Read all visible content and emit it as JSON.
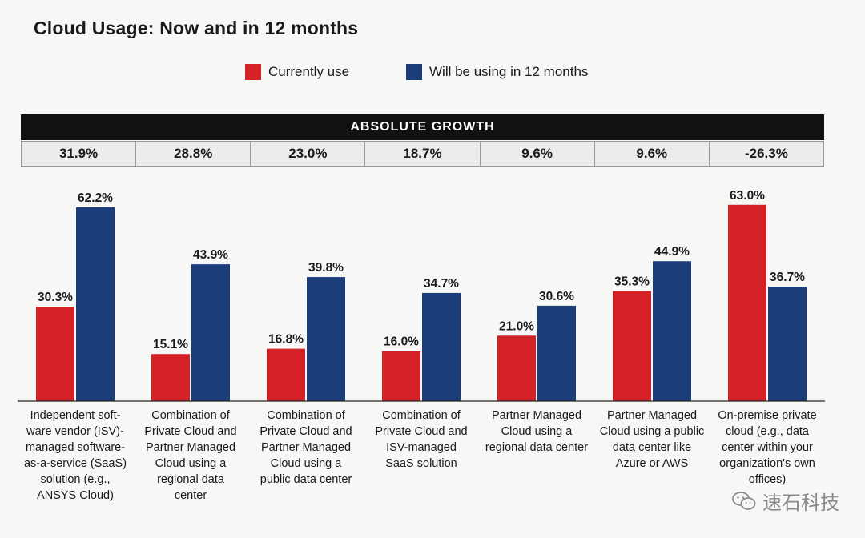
{
  "chart_data": {
    "type": "bar",
    "title": "Cloud Usage:  Now and in 12 months",
    "legend": [
      "Currently use",
      "Will be using in 12 months"
    ],
    "colors": {
      "current": "#d42027",
      "future": "#1c3d7c"
    },
    "growth_header": "ABSOLUTE  GROWTH",
    "growth": [
      "31.9%",
      "28.8%",
      "23.0%",
      "18.7%",
      "9.6%",
      "9.6%",
      "-26.3%"
    ],
    "categories": [
      [
        "Independent soft-",
        "ware vendor (ISV)-",
        "managed software-",
        "as-a-service (SaaS)",
        "solution (e.g.,",
        "ANSYS Cloud)"
      ],
      [
        "Combination of",
        "Private Cloud and",
        "Partner Managed",
        "Cloud using a",
        "regional data",
        "center"
      ],
      [
        "Combination of",
        "Private Cloud and",
        "Partner Managed",
        "Cloud using a",
        "public data center"
      ],
      [
        "Combination of",
        "Private Cloud and",
        "ISV-managed",
        "SaaS solution"
      ],
      [
        "Partner Managed",
        "Cloud using a",
        "regional data center"
      ],
      [
        "Partner Managed",
        "Cloud using a public",
        "data center like",
        "Azure or AWS"
      ],
      [
        "On-premise private",
        "cloud (e.g., data",
        "center within your",
        "organization's own",
        "offices)"
      ]
    ],
    "series": [
      {
        "name": "Currently use",
        "values": [
          30.3,
          15.1,
          16.8,
          16.0,
          21.0,
          35.3,
          63.0
        ]
      },
      {
        "name": "Will be using in 12 months",
        "values": [
          62.2,
          43.9,
          39.8,
          34.7,
          30.6,
          44.9,
          36.7
        ]
      }
    ],
    "value_labels": {
      "current": [
        "30.3%",
        "15.1%",
        "16.8%",
        "16.0%",
        "21.0%",
        "35.3%",
        "63.0%"
      ],
      "future": [
        "62.2%",
        "43.9%",
        "39.8%",
        "34.7%",
        "30.6%",
        "44.9%",
        "36.7%"
      ]
    },
    "ylim": [
      0,
      65
    ]
  },
  "watermark": {
    "text": "速石科技",
    "icon": "wechat-icon"
  }
}
